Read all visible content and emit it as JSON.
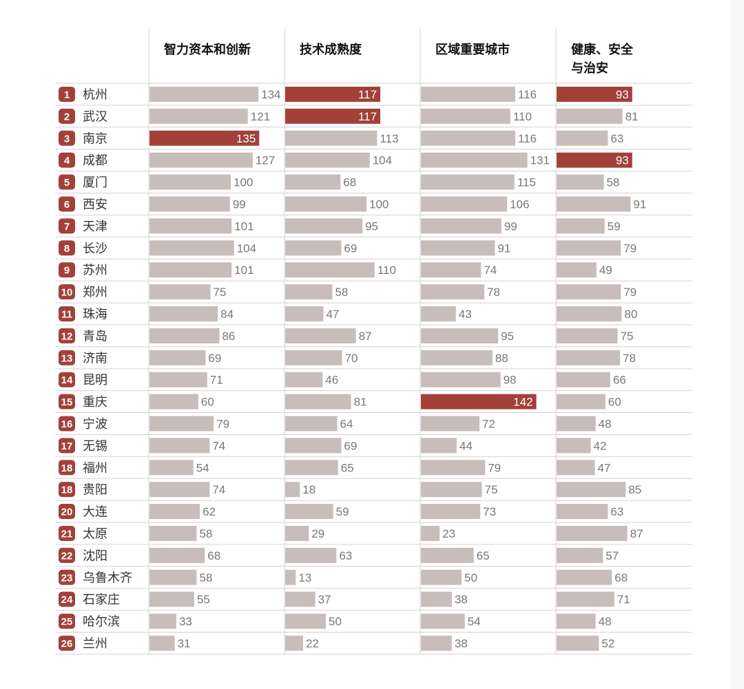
{
  "colors": {
    "normal_bar": "#c7bdbb",
    "highlight_bar": "#a3403a",
    "badge": "#a3403a",
    "grid": "#d6d0cf",
    "value_text": "#777777"
  },
  "chart_data": {
    "type": "bar",
    "orientation": "horizontal",
    "columns": [
      {
        "title_lines": [
          "智力资本和创新"
        ],
        "values": [
          134,
          121,
          135,
          127,
          100,
          99,
          101,
          104,
          101,
          75,
          84,
          86,
          69,
          71,
          60,
          79,
          74,
          54,
          74,
          62,
          58,
          68,
          58,
          55,
          33,
          31
        ],
        "highlight": [
          3
        ]
      },
      {
        "title_lines": [
          "技术成熟度"
        ],
        "values": [
          117,
          117,
          113,
          104,
          68,
          100,
          95,
          69,
          110,
          58,
          47,
          87,
          70,
          46,
          81,
          64,
          69,
          65,
          18,
          59,
          29,
          63,
          13,
          37,
          50,
          22
        ],
        "highlight": [
          1,
          2
        ]
      },
      {
        "title_lines": [
          "区域重要城市"
        ],
        "values": [
          116,
          110,
          116,
          131,
          115,
          106,
          99,
          91,
          74,
          78,
          43,
          95,
          88,
          98,
          142,
          72,
          44,
          79,
          75,
          73,
          23,
          65,
          50,
          38,
          54,
          38
        ],
        "highlight": [
          15
        ]
      },
      {
        "title_lines": [
          "健康、安全",
          "与治安"
        ],
        "values": [
          93,
          81,
          63,
          93,
          58,
          91,
          59,
          79,
          49,
          79,
          80,
          75,
          78,
          66,
          60,
          48,
          42,
          47,
          85,
          63,
          87,
          57,
          68,
          71,
          48,
          52
        ],
        "highlight": [
          1,
          4
        ]
      }
    ],
    "rows": [
      {
        "rank": "1",
        "city": "杭州"
      },
      {
        "rank": "2",
        "city": "武汉"
      },
      {
        "rank": "3",
        "city": "南京"
      },
      {
        "rank": "4",
        "city": "成都"
      },
      {
        "rank": "5",
        "city": "厦门"
      },
      {
        "rank": "6",
        "city": "西安"
      },
      {
        "rank": "7",
        "city": "天津"
      },
      {
        "rank": "8",
        "city": "长沙"
      },
      {
        "rank": "9",
        "city": "苏州"
      },
      {
        "rank": "10",
        "city": "郑州"
      },
      {
        "rank": "11",
        "city": "珠海"
      },
      {
        "rank": "12",
        "city": "青岛"
      },
      {
        "rank": "13",
        "city": "济南"
      },
      {
        "rank": "14",
        "city": "昆明"
      },
      {
        "rank": "15",
        "city": "重庆"
      },
      {
        "rank": "16",
        "city": "宁波"
      },
      {
        "rank": "17",
        "city": "无锡"
      },
      {
        "rank": "18",
        "city": "福州"
      },
      {
        "rank": "18",
        "city": "贵阳"
      },
      {
        "rank": "20",
        "city": "大连"
      },
      {
        "rank": "21",
        "city": "太原"
      },
      {
        "rank": "22",
        "city": "沈阳"
      },
      {
        "rank": "23",
        "city": "乌鲁木齐"
      },
      {
        "rank": "24",
        "city": "石家庄"
      },
      {
        "rank": "25",
        "city": "哈尔滨"
      },
      {
        "rank": "26",
        "city": "兰州"
      }
    ]
  }
}
